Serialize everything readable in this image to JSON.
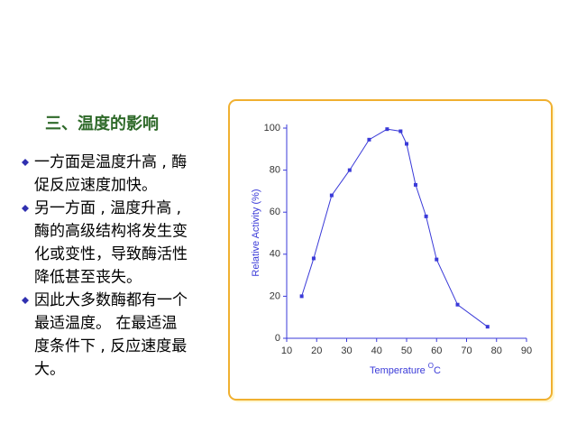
{
  "slide": {
    "title": "三、温度的影响",
    "bullets": [
      [
        "一方面是温度升高 , 酶",
        "促反应速度加快。"
      ],
      [
        "另一方面 , 温度升高 ,",
        "酶的高级结构将发生变",
        "化或变性，导致酶活性",
        "降低甚至丧失。"
      ],
      [
        "因此大多数酶都有一个",
        "最适温度。 在最适温",
        "度条件下 , 反应速度最",
        "大。"
      ]
    ]
  },
  "chart_data": {
    "type": "line",
    "ylabel": "Relative Activity (%)",
    "xlabel": "Temperature",
    "xlabel_sup": "O",
    "xlabel_unit": "C",
    "x": [
      15,
      19,
      25,
      31,
      37.5,
      43.5,
      48,
      50,
      53,
      56.5,
      60,
      67,
      77
    ],
    "series": [
      {
        "color": "#3a3ad8",
        "values": [
          20,
          38,
          68,
          80,
          94.5,
          99.5,
          98.5,
          92.5,
          73,
          58,
          37.5,
          16,
          5.5
        ]
      }
    ],
    "xlim": [
      10,
      90
    ],
    "xticks": [
      10,
      20,
      30,
      40,
      50,
      60,
      70,
      80,
      90
    ],
    "ylim": [
      0,
      100
    ],
    "yticks": [
      0,
      20,
      40,
      60,
      80,
      100
    ],
    "grid": false
  }
}
